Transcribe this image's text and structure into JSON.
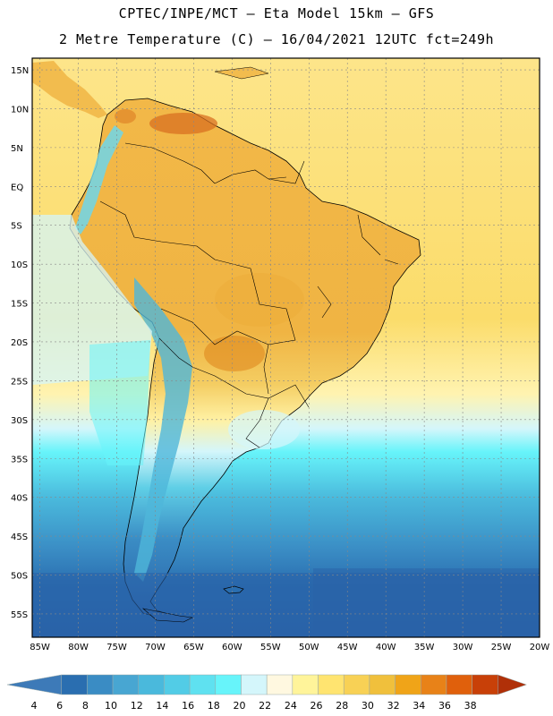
{
  "header": {
    "line1": "CPTEC/INPE/MCT –  Eta Model 15km – GFS",
    "line2": "2 Metre Temperature (C) – 16/04/2021 12UTC fct=249h"
  },
  "map": {
    "lat_labels": [
      "15N",
      "10N",
      "5N",
      "EQ",
      "5S",
      "10S",
      "15S",
      "20S",
      "25S",
      "30S",
      "35S",
      "40S",
      "45S",
      "50S",
      "55S"
    ],
    "lon_labels": [
      "85W",
      "80W",
      "75W",
      "70W",
      "65W",
      "60W",
      "55W",
      "50W",
      "45W",
      "40W",
      "35W",
      "30W",
      "25W",
      "20W"
    ],
    "lat_range": [
      -58,
      16.5
    ],
    "lon_range": [
      -86,
      -20
    ]
  },
  "colorbar": {
    "levels": [
      "4",
      "6",
      "8",
      "10",
      "12",
      "14",
      "16",
      "18",
      "20",
      "22",
      "24",
      "26",
      "28",
      "30",
      "32",
      "34",
      "36",
      "38"
    ],
    "colors": [
      "#3d7ab8",
      "#2a6eb0",
      "#3a8cc4",
      "#48a6d2",
      "#4ab9dc",
      "#52cce6",
      "#5fe1f0",
      "#67f4fa",
      "#d4f6fb",
      "#fff8e0",
      "#fff49a",
      "#ffe470",
      "#f8d155",
      "#f0c03c",
      "#f0a418",
      "#e88218",
      "#e0600c",
      "#c84008",
      "#b03008"
    ]
  },
  "colors": {
    "ocean_warm": "#fbe07a",
    "land_warm": "#f2bb4a",
    "hot": "#d87020",
    "cool_cyan": "#5fe1f0",
    "cold_blue": "#2a6eb0",
    "border": "#000000"
  }
}
